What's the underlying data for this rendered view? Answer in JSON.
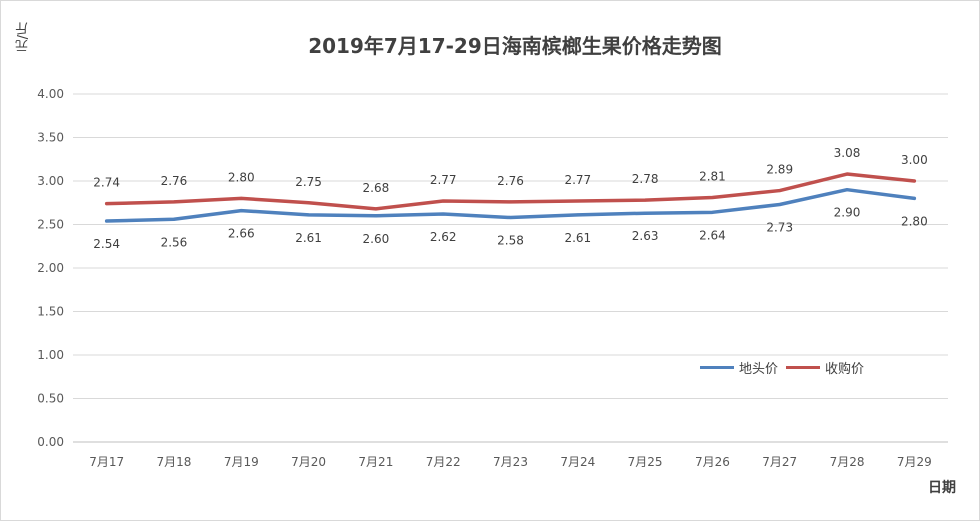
{
  "chart_data": {
    "type": "line",
    "title": "2019年7月17-29日海南槟榔生果价格走势图",
    "ylabel": "元/斤",
    "xlabel": "日期",
    "categories": [
      "7月17",
      "7月18",
      "7月19",
      "7月20",
      "7月21",
      "7月22",
      "7月23",
      "7月24",
      "7月25",
      "7月26",
      "7月27",
      "7月28",
      "7月29"
    ],
    "ylim": [
      0,
      4
    ],
    "yticks": [
      "0.00",
      "0.50",
      "1.00",
      "1.50",
      "2.00",
      "2.50",
      "3.00",
      "3.50",
      "4.00"
    ],
    "grid": true,
    "legend_position": "right",
    "series": [
      {
        "name": "地头价",
        "color": "#4f81bd",
        "values": [
          2.54,
          2.56,
          2.66,
          2.61,
          2.6,
          2.62,
          2.58,
          2.61,
          2.63,
          2.64,
          2.73,
          2.9,
          2.8
        ],
        "labels": [
          "2.54",
          "2.56",
          "2.66",
          "2.61",
          "2.60",
          "2.62",
          "2.58",
          "2.61",
          "2.63",
          "2.64",
          "2.73",
          "2.90",
          "2.80"
        ]
      },
      {
        "name": "收购价",
        "color": "#c0504d",
        "values": [
          2.74,
          2.76,
          2.8,
          2.75,
          2.68,
          2.77,
          2.76,
          2.77,
          2.78,
          2.81,
          2.89,
          3.08,
          3.0
        ],
        "labels": [
          "2.74",
          "2.76",
          "2.80",
          "2.75",
          "2.68",
          "2.77",
          "2.76",
          "2.77",
          "2.78",
          "2.81",
          "2.89",
          "3.08",
          "3.00"
        ]
      }
    ]
  }
}
